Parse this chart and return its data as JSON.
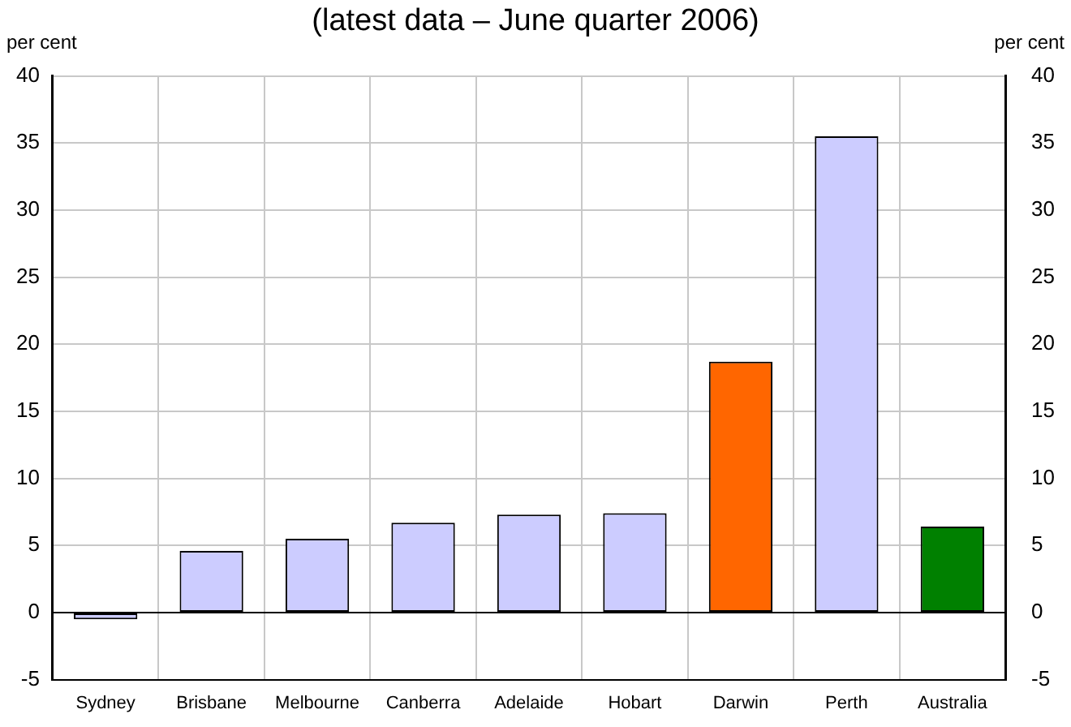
{
  "chart_data": {
    "type": "bar",
    "title": "(latest data – June quarter 2006)",
    "ylabel": "per cent",
    "y2label": "per cent",
    "categories": [
      "Sydney",
      "Brisbane",
      "Melbourne",
      "Canberra",
      "Adelaide",
      "Hobart",
      "Darwin",
      "Perth",
      "Australia"
    ],
    "values": [
      -0.5,
      4.6,
      5.5,
      6.7,
      7.3,
      7.4,
      18.7,
      35.5,
      6.4
    ],
    "colors": [
      "#ccccff",
      "#ccccff",
      "#ccccff",
      "#ccccff",
      "#ccccff",
      "#ccccff",
      "#ff6600",
      "#ccccff",
      "#008000"
    ],
    "ylim": [
      -5,
      40
    ],
    "yticks": [
      -5,
      0,
      5,
      10,
      15,
      20,
      25,
      30,
      35,
      40
    ],
    "y2lim": [
      -5,
      40
    ],
    "y2ticks": [
      -5,
      0,
      5,
      10,
      15,
      20,
      25,
      30,
      35,
      40
    ],
    "grid": true,
    "legend": false
  }
}
